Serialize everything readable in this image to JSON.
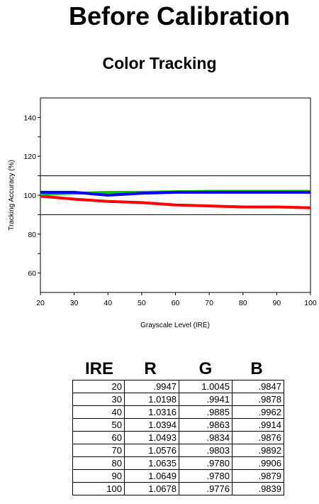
{
  "header": {
    "title": "Before Calibration",
    "subtitle": "Color Tracking"
  },
  "chart_data": {
    "type": "line",
    "xlabel": "Grayscale Level (IRE)",
    "ylabel": "Tracking Accuracy (%)",
    "xlim": [
      20,
      100
    ],
    "ylim": [
      50,
      150
    ],
    "xticks": [
      "20",
      "30",
      "40",
      "50",
      "60",
      "70",
      "80",
      "90",
      "100"
    ],
    "yticks": [
      "60",
      "80",
      "100",
      "120",
      "140"
    ],
    "reference_lines": [
      90,
      110
    ],
    "x": [
      20,
      30,
      40,
      50,
      60,
      70,
      80,
      90,
      100
    ],
    "series": [
      {
        "color": "#ff0000",
        "values": [
          99.5,
          98.0,
          96.8,
          96.2,
          95.0,
          94.5,
          94.0,
          94.0,
          93.5
        ]
      },
      {
        "color": "#00cc00",
        "values": [
          100.5,
          101.0,
          101.5,
          101.5,
          101.8,
          102.0,
          102.0,
          102.0,
          102.0
        ]
      },
      {
        "color": "#0000ff",
        "values": [
          101.5,
          101.5,
          100.0,
          101.0,
          101.5,
          101.5,
          101.5,
          101.5,
          101.5
        ]
      }
    ],
    "grid": false
  },
  "table": {
    "headers": [
      "IRE",
      "R",
      "G",
      "B"
    ],
    "rows": [
      [
        "20",
        ".9947",
        "1.0045",
        ".9847"
      ],
      [
        "30",
        "1.0198",
        ".9941",
        ".9878"
      ],
      [
        "40",
        "1.0316",
        ".9885",
        ".9962"
      ],
      [
        "50",
        "1.0394",
        ".9863",
        ".9914"
      ],
      [
        "60",
        "1.0493",
        ".9834",
        ".9876"
      ],
      [
        "70",
        "1.0576",
        ".9803",
        ".9892"
      ],
      [
        "80",
        "1.0635",
        ".9780",
        ".9906"
      ],
      [
        "90",
        "1.0649",
        ".9780",
        ".9879"
      ],
      [
        "100",
        "1.0678",
        ".9776",
        ".9839"
      ]
    ]
  }
}
